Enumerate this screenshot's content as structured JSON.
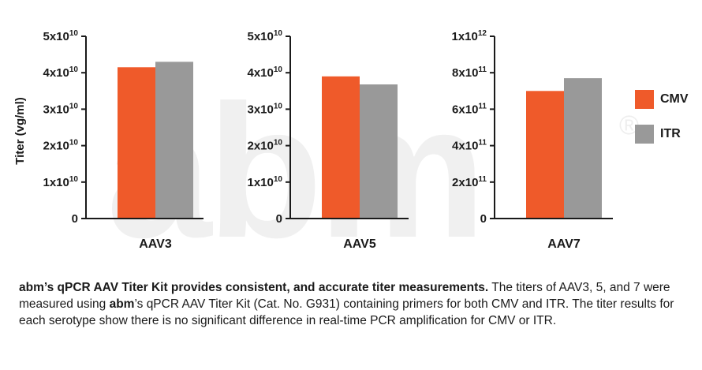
{
  "y_axis_label": "Titer (vg/ml)",
  "colors": {
    "cmv": "#ef5a2a",
    "itr": "#999999",
    "watermark": "#f0f0f0"
  },
  "watermark": {
    "text": "abm",
    "mark": "®"
  },
  "legend": [
    {
      "name": "CMV",
      "color": "#ef5a2a"
    },
    {
      "name": "ITR",
      "color": "#999999"
    }
  ],
  "chart_data": [
    {
      "type": "bar",
      "categories": [
        "AAV3"
      ],
      "series": [
        {
          "name": "CMV",
          "values": [
            41500000000.0
          ]
        },
        {
          "name": "ITR",
          "values": [
            43000000000.0
          ]
        }
      ],
      "ylim": [
        0,
        50000000000.0
      ],
      "yticks": [
        {
          "value": 0,
          "mantissa": "0",
          "exp": ""
        },
        {
          "value": 10000000000.0,
          "mantissa": "1x10",
          "exp": "10"
        },
        {
          "value": 20000000000.0,
          "mantissa": "2x10",
          "exp": "10"
        },
        {
          "value": 30000000000.0,
          "mantissa": "3x10",
          "exp": "10"
        },
        {
          "value": 40000000000.0,
          "mantissa": "4x10",
          "exp": "10"
        },
        {
          "value": 50000000000.0,
          "mantissa": "5x10",
          "exp": "10"
        }
      ],
      "xlabel": "AAV3",
      "ylabel": "Titer (vg/ml)"
    },
    {
      "type": "bar",
      "categories": [
        "AAV5"
      ],
      "series": [
        {
          "name": "CMV",
          "values": [
            39000000000.0
          ]
        },
        {
          "name": "ITR",
          "values": [
            36800000000.0
          ]
        }
      ],
      "ylim": [
        0,
        50000000000.0
      ],
      "yticks": [
        {
          "value": 0,
          "mantissa": "0",
          "exp": ""
        },
        {
          "value": 10000000000.0,
          "mantissa": "1x10",
          "exp": "10"
        },
        {
          "value": 20000000000.0,
          "mantissa": "2x10",
          "exp": "10"
        },
        {
          "value": 30000000000.0,
          "mantissa": "3x10",
          "exp": "10"
        },
        {
          "value": 40000000000.0,
          "mantissa": "4x10",
          "exp": "10"
        },
        {
          "value": 50000000000.0,
          "mantissa": "5x10",
          "exp": "10"
        }
      ],
      "xlabel": "AAV5",
      "ylabel": ""
    },
    {
      "type": "bar",
      "categories": [
        "AAV7"
      ],
      "series": [
        {
          "name": "CMV",
          "values": [
            700000000000.0
          ]
        },
        {
          "name": "ITR",
          "values": [
            770000000000.0
          ]
        }
      ],
      "ylim": [
        0,
        1000000000000.0
      ],
      "yticks": [
        {
          "value": 0,
          "mantissa": "0",
          "exp": ""
        },
        {
          "value": 200000000000.0,
          "mantissa": "2x10",
          "exp": "11"
        },
        {
          "value": 400000000000.0,
          "mantissa": "4x10",
          "exp": "11"
        },
        {
          "value": 600000000000.0,
          "mantissa": "6x10",
          "exp": "11"
        },
        {
          "value": 800000000000.0,
          "mantissa": "8x10",
          "exp": "11"
        },
        {
          "value": 1000000000000.0,
          "mantissa": "1x10",
          "exp": "12"
        }
      ],
      "xlabel": "AAV7",
      "ylabel": ""
    }
  ],
  "caption": {
    "lead": "abm’s qPCR AAV Titer Kit provides consistent, and accurate titer measurements.",
    "part1": " The titers of AAV3, 5, and 7 were measured using ",
    "brand": "abm",
    "part2": "’s qPCR AAV Titer Kit (Cat. No. G931) containing primers for both CMV and ITR. The titer results for each serotype show there is no significant difference in real-time PCR amplification for CMV or ITR."
  }
}
